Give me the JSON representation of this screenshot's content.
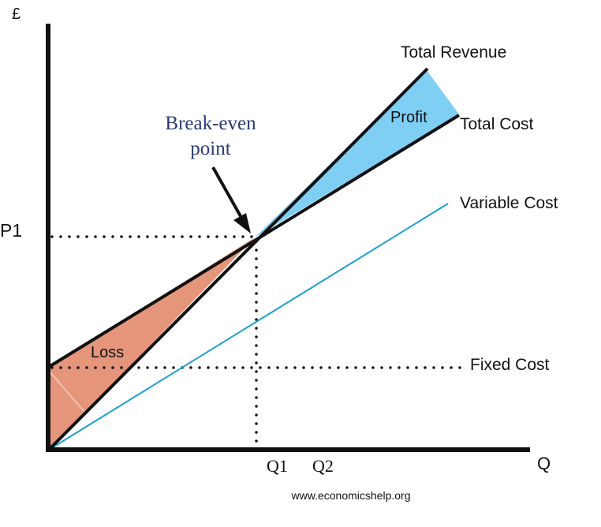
{
  "diagram": {
    "y_axis_label": "£",
    "x_axis_label": "Q",
    "price_label": "P1",
    "break_even_label_line1": "Break-even",
    "break_even_label_line2": "point",
    "total_revenue_label": "Total Revenue",
    "total_cost_label": "Total Cost",
    "variable_cost_label": "Variable Cost",
    "fixed_cost_label": "Fixed Cost",
    "profit_label": "Profit",
    "loss_label": "Loss",
    "q1_label": "Q1",
    "q2_label": "Q2",
    "source_label": "www.economicshelp.org"
  },
  "colors": {
    "axis": "#111111",
    "profit_fill": "#7fcff5",
    "loss_fill": "#e4957a",
    "variable_cost_line": "#1a9fd0",
    "break_even_text": "#2b3a73"
  }
}
